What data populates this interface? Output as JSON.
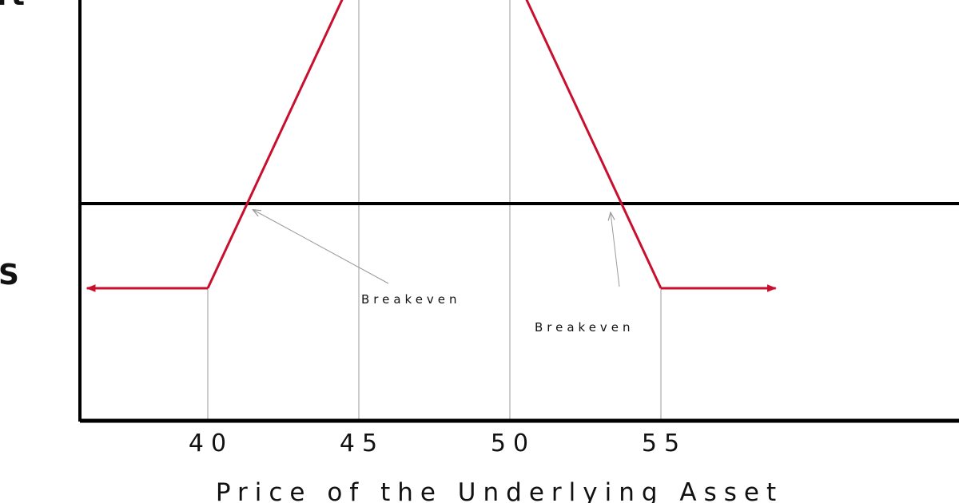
{
  "chart_data": {
    "type": "line",
    "title": "",
    "xlabel": "Price of the Underlying Asset",
    "ylabel": "",
    "side_labels": {
      "top": "rt",
      "bottom": "S"
    },
    "x_ticks": [
      40,
      45,
      50,
      55
    ],
    "series": [
      {
        "values": [
          {
            "x": 36,
            "y": -3
          },
          {
            "x": 40,
            "y": -3
          },
          {
            "x": 45,
            "y": 8.5
          },
          {
            "x": 50,
            "y": 8.5
          },
          {
            "x": 55,
            "y": -3
          },
          {
            "x": 58.8,
            "y": -3
          }
        ],
        "color": "#c8102e",
        "arrows_at_ends": true
      }
    ],
    "reference_lines_x": [
      40,
      45,
      50,
      55
    ],
    "zero_line": true,
    "breakeven": [
      41.3,
      53.6
    ],
    "annotations": [
      {
        "text": "Breakeven",
        "points_to_x": 41.3
      },
      {
        "text": "Breakeven",
        "points_to_x": 53.6
      }
    ],
    "colors": {
      "payoff_line": "#c8102e",
      "axis": "#000000",
      "guide": "#999999"
    }
  }
}
